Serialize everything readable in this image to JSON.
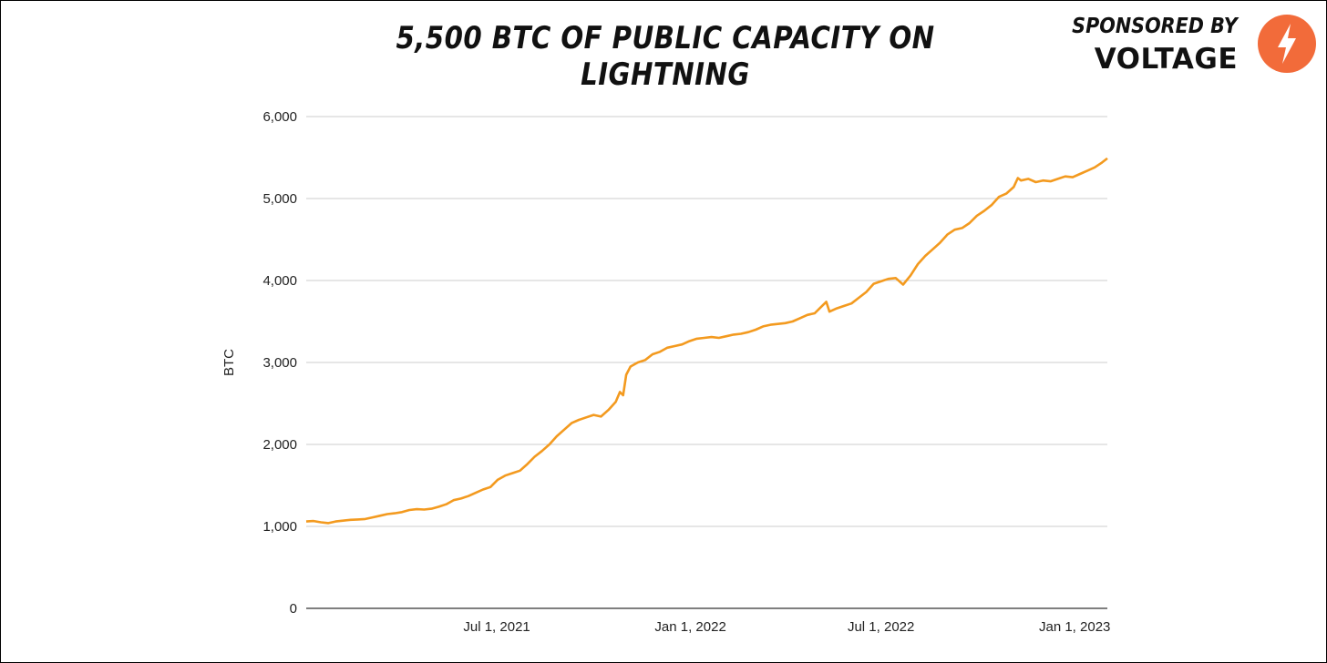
{
  "header": {
    "title": "5,500 BTC OF PUBLIC CAPACITY ON LIGHTNING"
  },
  "sponsor": {
    "label": "SPONSORED BY",
    "name": "VOLTAGE",
    "logo_icon": "lightning-bolt-icon",
    "logo_color": "#F26B3A"
  },
  "colors": {
    "line": "#F39A1F",
    "grid": "#CCCCCC",
    "axis": "#333333",
    "text": "#222222"
  },
  "chart_data": {
    "type": "line",
    "title": "5,500 BTC OF PUBLIC CAPACITY ON LIGHTNING",
    "xlabel": "",
    "ylabel": "BTC",
    "ylim": [
      0,
      6000
    ],
    "xlim": [
      "2021-01-01",
      "2023-02-01"
    ],
    "grid": true,
    "legend": "none",
    "yticks": [
      {
        "value": 0,
        "label": "0"
      },
      {
        "value": 1000,
        "label": "1,000"
      },
      {
        "value": 2000,
        "label": "2,000"
      },
      {
        "value": 3000,
        "label": "3,000"
      },
      {
        "value": 4000,
        "label": "4,000"
      },
      {
        "value": 5000,
        "label": "5,000"
      },
      {
        "value": 6000,
        "label": "6,000"
      }
    ],
    "xticks": [
      {
        "value": "2021-07-01",
        "label": "Jul 1, 2021"
      },
      {
        "value": "2022-01-01",
        "label": "Jan 1, 2022"
      },
      {
        "value": "2022-07-01",
        "label": "Jul 1, 2022"
      },
      {
        "value": "2023-01-01",
        "label": "Jan 1, 2023"
      }
    ],
    "series": [
      {
        "name": "Public capacity (BTC)",
        "points": [
          [
            "2021-01-01",
            1060
          ],
          [
            "2021-01-08",
            1065
          ],
          [
            "2021-01-15",
            1050
          ],
          [
            "2021-01-22",
            1040
          ],
          [
            "2021-01-29",
            1060
          ],
          [
            "2021-02-05",
            1070
          ],
          [
            "2021-02-12",
            1080
          ],
          [
            "2021-02-19",
            1085
          ],
          [
            "2021-02-26",
            1090
          ],
          [
            "2021-03-05",
            1110
          ],
          [
            "2021-03-12",
            1130
          ],
          [
            "2021-03-19",
            1150
          ],
          [
            "2021-03-26",
            1160
          ],
          [
            "2021-04-02",
            1175
          ],
          [
            "2021-04-09",
            1200
          ],
          [
            "2021-04-16",
            1210
          ],
          [
            "2021-04-23",
            1205
          ],
          [
            "2021-04-30",
            1215
          ],
          [
            "2021-05-07",
            1240
          ],
          [
            "2021-05-14",
            1270
          ],
          [
            "2021-05-21",
            1320
          ],
          [
            "2021-05-28",
            1340
          ],
          [
            "2021-06-04",
            1370
          ],
          [
            "2021-06-11",
            1410
          ],
          [
            "2021-06-18",
            1450
          ],
          [
            "2021-06-25",
            1480
          ],
          [
            "2021-07-02",
            1570
          ],
          [
            "2021-07-09",
            1620
          ],
          [
            "2021-07-16",
            1650
          ],
          [
            "2021-07-23",
            1680
          ],
          [
            "2021-07-30",
            1760
          ],
          [
            "2021-08-06",
            1850
          ],
          [
            "2021-08-13",
            1920
          ],
          [
            "2021-08-20",
            2000
          ],
          [
            "2021-08-27",
            2100
          ],
          [
            "2021-09-03",
            2180
          ],
          [
            "2021-09-10",
            2260
          ],
          [
            "2021-09-17",
            2300
          ],
          [
            "2021-09-24",
            2330
          ],
          [
            "2021-10-01",
            2360
          ],
          [
            "2021-10-08",
            2340
          ],
          [
            "2021-10-15",
            2420
          ],
          [
            "2021-10-22",
            2520
          ],
          [
            "2021-10-26",
            2640
          ],
          [
            "2021-10-29",
            2600
          ],
          [
            "2021-11-01",
            2850
          ],
          [
            "2021-11-05",
            2950
          ],
          [
            "2021-11-12",
            3000
          ],
          [
            "2021-11-19",
            3030
          ],
          [
            "2021-11-26",
            3100
          ],
          [
            "2021-12-03",
            3130
          ],
          [
            "2021-12-10",
            3180
          ],
          [
            "2021-12-17",
            3200
          ],
          [
            "2021-12-24",
            3220
          ],
          [
            "2021-12-31",
            3260
          ],
          [
            "2022-01-07",
            3290
          ],
          [
            "2022-01-14",
            3300
          ],
          [
            "2022-01-21",
            3310
          ],
          [
            "2022-01-28",
            3300
          ],
          [
            "2022-02-04",
            3320
          ],
          [
            "2022-02-11",
            3340
          ],
          [
            "2022-02-18",
            3350
          ],
          [
            "2022-02-25",
            3370
          ],
          [
            "2022-03-04",
            3400
          ],
          [
            "2022-03-11",
            3440
          ],
          [
            "2022-03-18",
            3460
          ],
          [
            "2022-03-25",
            3470
          ],
          [
            "2022-04-01",
            3480
          ],
          [
            "2022-04-08",
            3500
          ],
          [
            "2022-04-15",
            3540
          ],
          [
            "2022-04-22",
            3580
          ],
          [
            "2022-04-29",
            3600
          ],
          [
            "2022-05-06",
            3690
          ],
          [
            "2022-05-10",
            3740
          ],
          [
            "2022-05-13",
            3620
          ],
          [
            "2022-05-20",
            3660
          ],
          [
            "2022-05-27",
            3690
          ],
          [
            "2022-06-03",
            3720
          ],
          [
            "2022-06-10",
            3790
          ],
          [
            "2022-06-17",
            3860
          ],
          [
            "2022-06-24",
            3960
          ],
          [
            "2022-07-01",
            3990
          ],
          [
            "2022-07-08",
            4020
          ],
          [
            "2022-07-15",
            4030
          ],
          [
            "2022-07-22",
            3950
          ],
          [
            "2022-07-29",
            4060
          ],
          [
            "2022-08-05",
            4200
          ],
          [
            "2022-08-12",
            4300
          ],
          [
            "2022-08-19",
            4380
          ],
          [
            "2022-08-26",
            4460
          ],
          [
            "2022-09-02",
            4560
          ],
          [
            "2022-09-09",
            4620
          ],
          [
            "2022-09-16",
            4640
          ],
          [
            "2022-09-23",
            4700
          ],
          [
            "2022-09-30",
            4790
          ],
          [
            "2022-10-07",
            4850
          ],
          [
            "2022-10-14",
            4920
          ],
          [
            "2022-10-21",
            5020
          ],
          [
            "2022-10-28",
            5060
          ],
          [
            "2022-11-04",
            5140
          ],
          [
            "2022-11-08",
            5250
          ],
          [
            "2022-11-11",
            5220
          ],
          [
            "2022-11-18",
            5240
          ],
          [
            "2022-11-25",
            5200
          ],
          [
            "2022-12-02",
            5220
          ],
          [
            "2022-12-09",
            5210
          ],
          [
            "2022-12-16",
            5240
          ],
          [
            "2022-12-23",
            5270
          ],
          [
            "2022-12-30",
            5260
          ],
          [
            "2023-01-06",
            5300
          ],
          [
            "2023-01-13",
            5340
          ],
          [
            "2023-01-20",
            5380
          ],
          [
            "2023-01-27",
            5440
          ],
          [
            "2023-02-01",
            5490
          ]
        ]
      }
    ]
  }
}
